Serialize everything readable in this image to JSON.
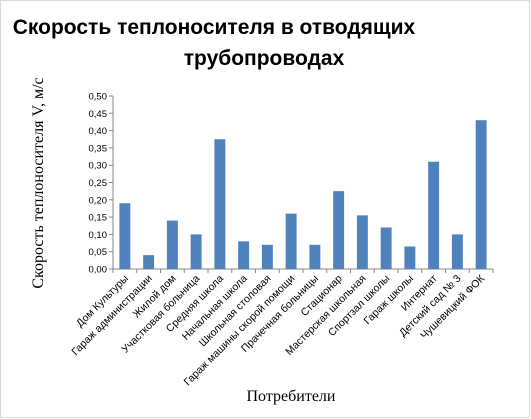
{
  "chart_data": {
    "type": "bar",
    "title_line1": "Скорость теплоносителя в отводящих",
    "title_line2": "трубопроводах",
    "xlabel": "Потребители",
    "ylabel": "Скорость теплоносителя V, м/с",
    "ylim": [
      0,
      0.5
    ],
    "ytick_step": 0.05,
    "yticks": [
      "0,00",
      "0,05",
      "0,10",
      "0,15",
      "0,20",
      "0,25",
      "0,30",
      "0,35",
      "0,40",
      "0,45",
      "0,50"
    ],
    "grid": false,
    "legend": "none",
    "bar_color": "#4f81bd",
    "categories": [
      "Дом Культуры",
      "Гараж администрации",
      "Жилой дом",
      "Участковая больница",
      "Средняя школа",
      "Начальная школа",
      "Школьная столовая",
      "Гараж машины скорой помощи",
      "Прачечная больницы",
      "Стационар",
      "Мастерская школьная",
      "Спортзал школы",
      "Гараж школы",
      "Интернат",
      "Детский сад № 3",
      "Чушевицкий ФОК"
    ],
    "values": [
      0.19,
      0.04,
      0.14,
      0.1,
      0.375,
      0.08,
      0.07,
      0.16,
      0.07,
      0.225,
      0.155,
      0.12,
      0.065,
      0.31,
      0.1,
      0.43
    ]
  }
}
